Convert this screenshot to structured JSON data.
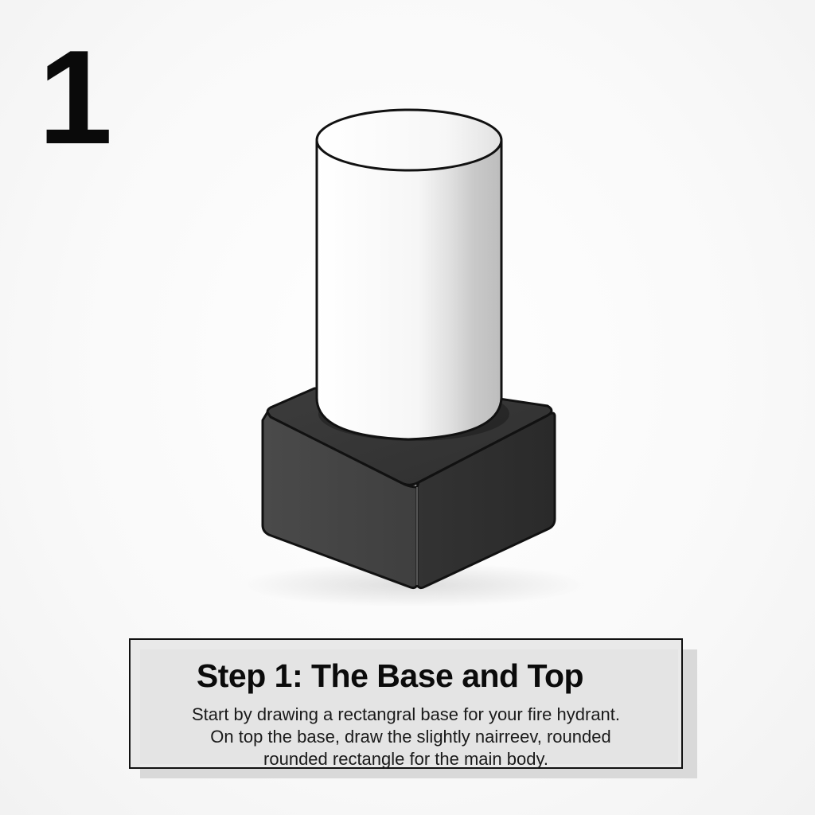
{
  "step_number": "1",
  "caption": {
    "title": "Step 1: The Base and Top",
    "lines": [
      "Start by drawing a rectangral base for your fire hydrant.",
      "On top the base, draw the slightly nairreev, rounded",
      "rounded rectangle for the main body."
    ]
  },
  "colors": {
    "base_dark": "#3a3a3a",
    "cylinder_light": "#f7f7f7",
    "outline": "#111111"
  }
}
